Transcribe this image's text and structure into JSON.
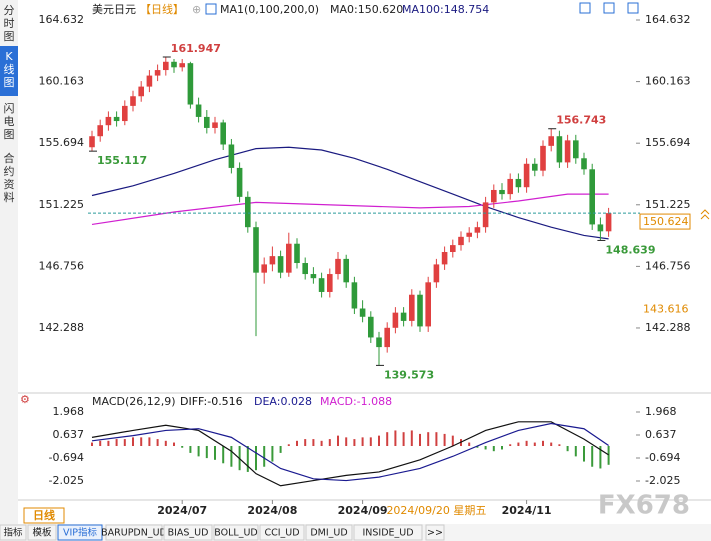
{
  "ui": {
    "sidebar": [
      "分时图",
      "K线图",
      "闪电图",
      "合约资料"
    ],
    "symbol": "美元日元",
    "period": "【日线】",
    "indicator": "MA1(0,100,200,0)",
    "ma0_label": "MA0:150.620",
    "period_tag": "日线",
    "tabs": [
      "指标",
      "模板",
      "VIP指标",
      "BARUPDN_UD",
      "BIAS_UD",
      "BOLL_UD",
      "CCI_UD",
      "DMI_UD",
      "INSIDE_UD",
      ">>"
    ],
    "watermark": "FX678"
  },
  "chart_data": [
    {
      "type": "candlestick",
      "up_color": "#e04040",
      "down_color": "#2f9a3a",
      "ylim": [
        138.15,
        164.632
      ],
      "yticks": [
        164.632,
        160.163,
        155.694,
        151.225,
        146.756,
        142.288
      ],
      "xticks": [
        {
          "value": 11,
          "label": "2024/07"
        },
        {
          "value": 22,
          "label": "2024/08"
        },
        {
          "value": 33,
          "label": "2024/09"
        },
        {
          "value": 53,
          "label": "2024/11"
        }
      ],
      "cursor": {
        "x": 42,
        "label": "2024/09/20 星期五"
      },
      "candles": [
        [
          155.4,
          156.6,
          155.117,
          156.2
        ],
        [
          156.2,
          157.4,
          155.8,
          157.0
        ],
        [
          157.0,
          158.0,
          156.6,
          157.6
        ],
        [
          157.6,
          158.0,
          156.9,
          157.3
        ],
        [
          157.3,
          158.8,
          157.0,
          158.4
        ],
        [
          158.4,
          159.5,
          158.0,
          159.1
        ],
        [
          159.1,
          160.2,
          158.7,
          159.8
        ],
        [
          159.8,
          161.0,
          159.4,
          160.6
        ],
        [
          160.6,
          161.4,
          160.2,
          161.0
        ],
        [
          161.0,
          161.947,
          160.6,
          161.6
        ],
        [
          161.6,
          161.8,
          160.8,
          161.2
        ],
        [
          161.2,
          161.8,
          160.9,
          161.5
        ],
        [
          161.5,
          161.6,
          158.2,
          158.5
        ],
        [
          158.5,
          159.0,
          157.2,
          157.6
        ],
        [
          157.6,
          158.1,
          156.4,
          156.8
        ],
        [
          156.8,
          157.6,
          156.4,
          157.2
        ],
        [
          157.2,
          157.4,
          155.2,
          155.6
        ],
        [
          155.6,
          156.0,
          153.5,
          153.9
        ],
        [
          153.9,
          154.3,
          151.4,
          151.8
        ],
        [
          151.8,
          152.2,
          149.2,
          149.6
        ],
        [
          149.6,
          150.0,
          141.7,
          146.3
        ],
        [
          146.3,
          147.4,
          145.5,
          146.9
        ],
        [
          146.9,
          148.2,
          146.4,
          147.5
        ],
        [
          147.5,
          147.9,
          145.9,
          146.3
        ],
        [
          146.3,
          149.2,
          146.0,
          148.4
        ],
        [
          148.4,
          148.8,
          146.6,
          147.0
        ],
        [
          147.0,
          147.4,
          145.8,
          146.2
        ],
        [
          146.2,
          146.7,
          145.5,
          145.9
        ],
        [
          145.9,
          146.3,
          144.5,
          144.9
        ],
        [
          144.9,
          146.6,
          144.5,
          146.2
        ],
        [
          146.2,
          147.8,
          145.8,
          147.3
        ],
        [
          147.3,
          147.6,
          145.2,
          145.6
        ],
        [
          145.6,
          146.0,
          143.3,
          143.7
        ],
        [
          143.7,
          144.3,
          142.7,
          143.1
        ],
        [
          143.1,
          143.5,
          141.2,
          141.6
        ],
        [
          141.6,
          142.0,
          139.573,
          140.9
        ],
        [
          140.9,
          142.7,
          140.5,
          142.3
        ],
        [
          142.3,
          143.8,
          141.9,
          143.4
        ],
        [
          143.4,
          143.8,
          142.4,
          142.8
        ],
        [
          142.8,
          145.1,
          142.4,
          144.7
        ],
        [
          144.7,
          145.0,
          142.0,
          142.4
        ],
        [
          142.4,
          146.0,
          142.0,
          145.6
        ],
        [
          145.6,
          147.3,
          145.2,
          146.9
        ],
        [
          146.9,
          148.2,
          146.5,
          147.8
        ],
        [
          147.8,
          148.7,
          147.4,
          148.3
        ],
        [
          148.3,
          149.3,
          147.9,
          148.9
        ],
        [
          148.9,
          149.6,
          148.5,
          149.2
        ],
        [
          149.2,
          150.0,
          148.8,
          149.6
        ],
        [
          149.6,
          151.8,
          149.2,
          151.4
        ],
        [
          151.4,
          152.7,
          151.0,
          152.3
        ],
        [
          152.3,
          152.8,
          151.6,
          152.0
        ],
        [
          152.0,
          153.5,
          151.6,
          153.1
        ],
        [
          153.1,
          153.5,
          152.1,
          152.5
        ],
        [
          152.5,
          154.6,
          152.1,
          154.2
        ],
        [
          154.2,
          154.6,
          153.3,
          153.7
        ],
        [
          153.7,
          155.9,
          153.3,
          155.5
        ],
        [
          155.5,
          156.743,
          155.1,
          156.2
        ],
        [
          156.2,
          156.6,
          153.9,
          154.3
        ],
        [
          154.3,
          156.3,
          153.9,
          155.9
        ],
        [
          155.9,
          156.3,
          154.2,
          154.6
        ],
        [
          154.6,
          155.0,
          153.4,
          153.8
        ],
        [
          153.8,
          154.2,
          149.4,
          149.8
        ],
        [
          149.8,
          150.3,
          148.639,
          149.3
        ],
        [
          149.3,
          151.0,
          148.9,
          150.62
        ]
      ],
      "series": [
        {
          "label": "MA100:148.754",
          "color": "#1a1a80",
          "x": [
            0,
            5,
            10,
            15,
            20,
            24,
            28,
            32,
            36,
            40,
            44,
            48,
            52,
            56,
            60,
            63
          ],
          "values": [
            151.9,
            152.6,
            153.5,
            154.5,
            155.3,
            155.4,
            155.2,
            154.6,
            153.8,
            152.9,
            152.0,
            151.1,
            150.3,
            149.6,
            149.0,
            148.754
          ]
        },
        {
          "color": "#d020d0",
          "x": [
            0,
            10,
            20,
            30,
            40,
            46,
            52,
            58,
            63
          ],
          "values": [
            149.8,
            150.7,
            151.4,
            151.2,
            151.0,
            151.1,
            151.5,
            152.0,
            152.0
          ]
        }
      ],
      "annotations": [
        {
          "value": 161.947,
          "x": 9,
          "color": "#d04040"
        },
        {
          "value": 155.117,
          "x": 0,
          "color": "#3a9a3a"
        },
        {
          "value": 139.573,
          "x": 35,
          "color": "#3a9a3a"
        },
        {
          "value": 156.743,
          "x": 56,
          "color": "#d04040"
        },
        {
          "value": 148.639,
          "x": 62,
          "color": "#3a9a3a"
        }
      ],
      "last_price": 150.624,
      "marker_price": 143.616
    },
    {
      "type": "macd",
      "title": "MACD(26,12,9)",
      "ylim": [
        -2.546,
        2.662
      ],
      "yticks": [
        1.968,
        0.637,
        -0.694,
        -2.025
      ],
      "up_color": "#d04040",
      "down_color": "#3a9a3a",
      "histogram": {
        "label": "MACD:-1.088",
        "color": "#d020d0",
        "values": [
          0.2,
          0.3,
          0.3,
          0.4,
          0.4,
          0.5,
          0.5,
          0.5,
          0.4,
          0.3,
          0.2,
          -0.1,
          -0.4,
          -0.6,
          -0.7,
          -0.8,
          -1.0,
          -1.2,
          -1.4,
          -1.5,
          -1.4,
          -1.2,
          -0.9,
          -0.4,
          0.1,
          0.3,
          0.4,
          0.4,
          0.3,
          0.4,
          0.6,
          0.5,
          0.4,
          0.5,
          0.5,
          0.6,
          0.8,
          0.9,
          0.8,
          0.9,
          0.7,
          0.8,
          0.8,
          0.7,
          0.6,
          0.4,
          0.2,
          -0.1,
          -0.2,
          -0.3,
          -0.2,
          0.1,
          0.2,
          0.3,
          0.2,
          0.3,
          0.2,
          0.1,
          -0.3,
          -0.6,
          -0.9,
          -1.2,
          -1.3,
          -1.088
        ]
      },
      "series": [
        {
          "label": "DIFF:-0.516",
          "color": "#111111",
          "x": [
            0,
            5,
            9,
            13,
            17,
            20,
            23,
            27,
            31,
            35,
            40,
            44,
            48,
            52,
            56,
            60,
            63
          ],
          "values": [
            0.5,
            0.9,
            1.2,
            0.9,
            -0.3,
            -1.6,
            -2.3,
            -2.0,
            -1.7,
            -1.5,
            -0.8,
            0.0,
            0.9,
            1.4,
            1.4,
            0.4,
            -0.516
          ]
        },
        {
          "label": "DEA:0.028",
          "color": "#1a1a90",
          "x": [
            0,
            5,
            9,
            13,
            17,
            20,
            23,
            27,
            31,
            35,
            40,
            44,
            48,
            52,
            56,
            60,
            63
          ],
          "values": [
            0.3,
            0.6,
            0.9,
            1.0,
            0.5,
            -0.4,
            -1.3,
            -1.9,
            -2.0,
            -1.8,
            -1.3,
            -0.6,
            0.2,
            0.9,
            1.3,
            1.0,
            0.028
          ]
        }
      ]
    }
  ]
}
